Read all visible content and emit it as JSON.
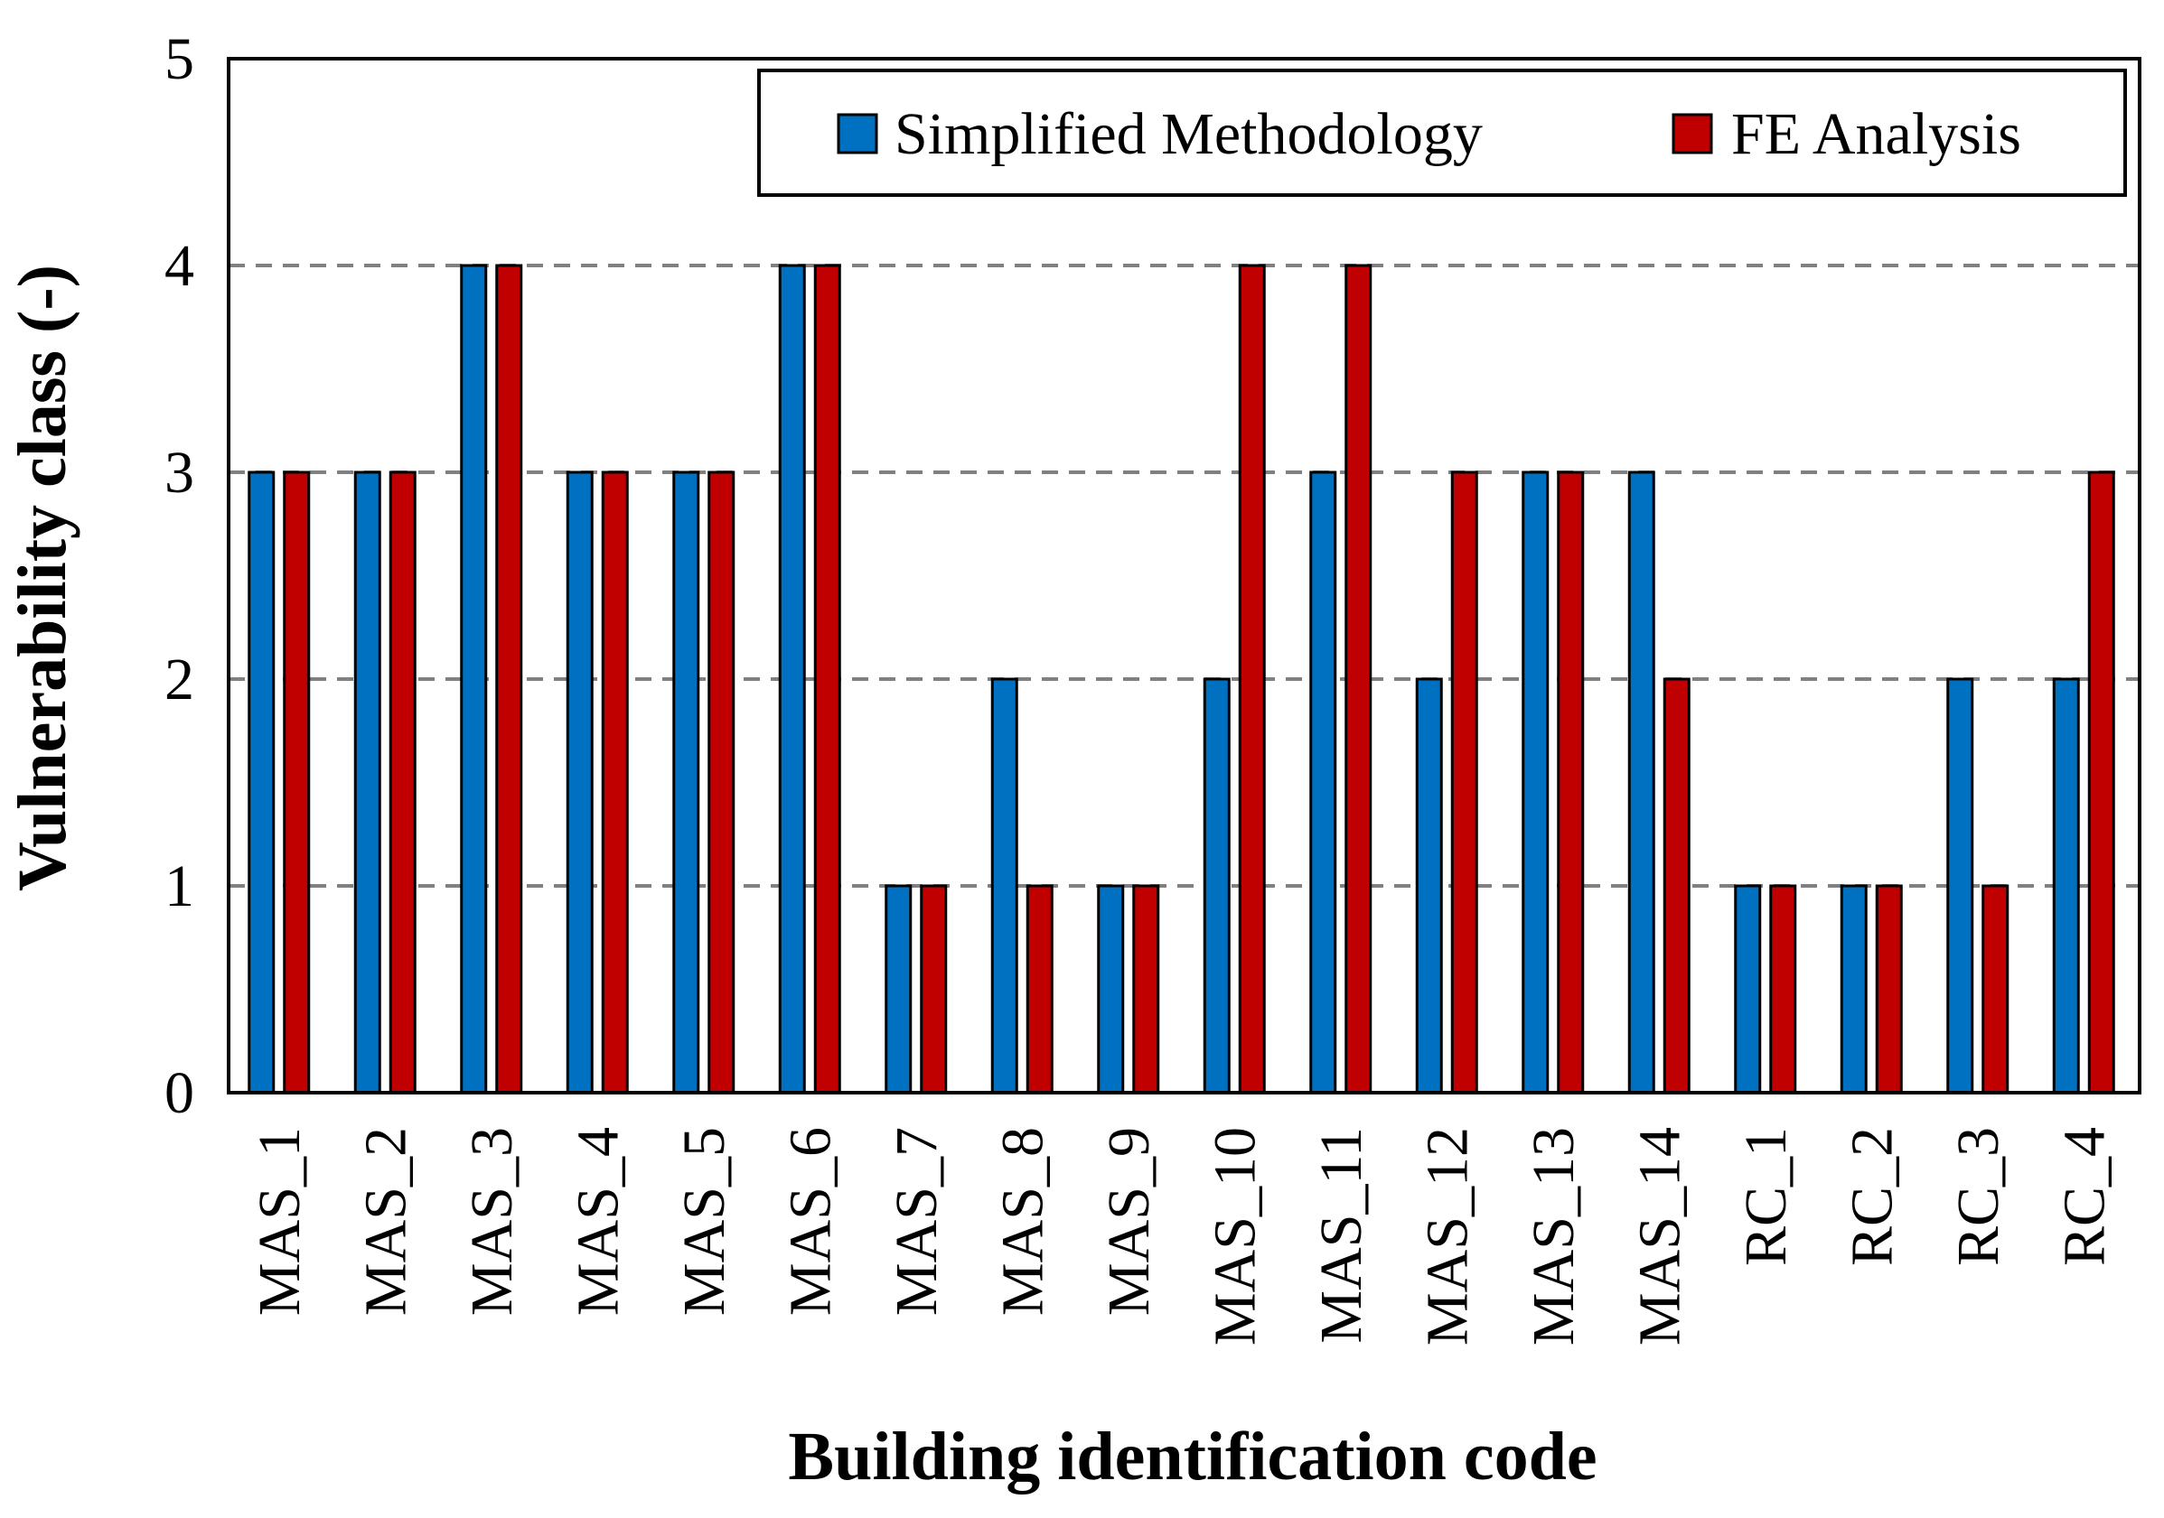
{
  "chart_data": {
    "type": "bar",
    "title": "",
    "xlabel": "Building identification code",
    "ylabel": "Vulnerability class (-)",
    "ylim": [
      0,
      5
    ],
    "yticks": [
      0,
      1,
      2,
      3,
      4,
      5
    ],
    "grid": "horizontal dashed",
    "legend_position": "top-right",
    "categories": [
      "MAS_1",
      "MAS_2",
      "MAS_3",
      "MAS_4",
      "MAS_5",
      "MAS_6",
      "MAS_7",
      "MAS_8",
      "MAS_9",
      "MAS_10",
      "MAS_11",
      "MAS_12",
      "MAS_13",
      "MAS_14",
      "RC_1",
      "RC_2",
      "RC_3",
      "RC_4"
    ],
    "series": [
      {
        "name": "Simplified Methodology",
        "color": "#0070C0",
        "values": [
          3,
          3,
          4,
          3,
          3,
          4,
          1,
          2,
          1,
          2,
          3,
          2,
          3,
          3,
          1,
          1,
          2,
          2
        ]
      },
      {
        "name": "FE Analysis",
        "color": "#C00000",
        "values": [
          3,
          3,
          4,
          3,
          3,
          4,
          1,
          1,
          1,
          4,
          4,
          3,
          3,
          2,
          1,
          1,
          1,
          3
        ]
      }
    ]
  }
}
